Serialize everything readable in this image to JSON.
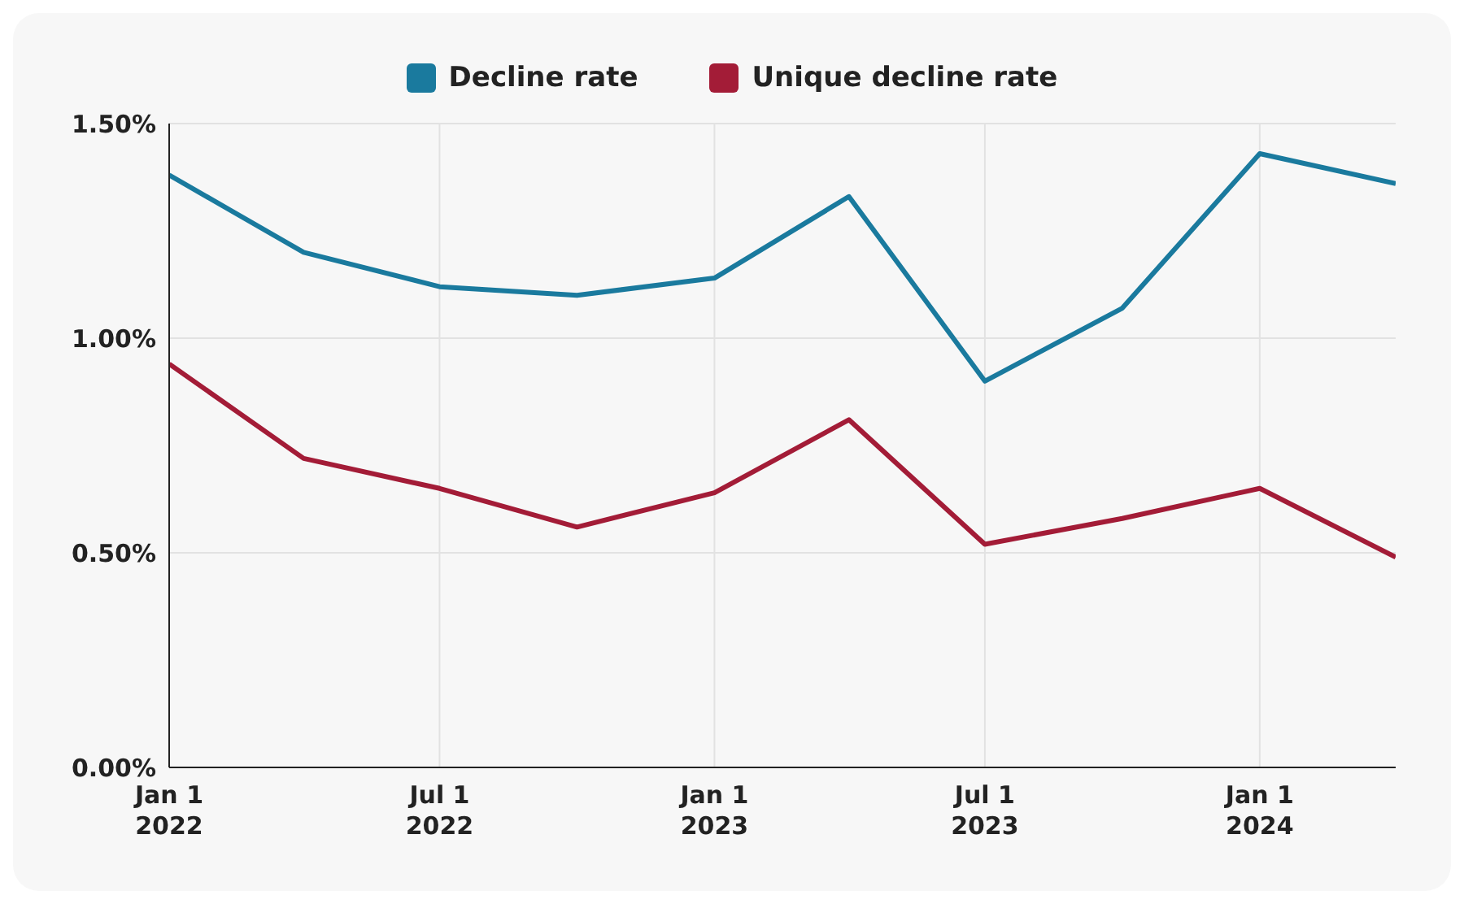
{
  "chart_data": {
    "type": "line",
    "x": [
      "2022-01-01",
      "2022-04-01",
      "2022-07-01",
      "2022-10-01",
      "2023-01-01",
      "2023-04-01",
      "2023-07-01",
      "2023-10-01",
      "2024-01-01",
      "2024-04-01"
    ],
    "series": [
      {
        "name": "Decline rate",
        "color": "#1a7a9e",
        "values": [
          1.38,
          1.2,
          1.12,
          1.1,
          1.14,
          1.33,
          0.9,
          1.07,
          1.43,
          1.36
        ]
      },
      {
        "name": "Unique decline rate",
        "color": "#a31c37",
        "values": [
          0.94,
          0.72,
          0.65,
          0.56,
          0.64,
          0.81,
          0.52,
          0.58,
          0.65,
          0.49
        ]
      }
    ],
    "xlim": [
      "2022-01-01",
      "2024-04-01"
    ],
    "xticks": [
      {
        "value": "2022-01-01",
        "label": "Jan 1\n2022"
      },
      {
        "value": "2022-07-01",
        "label": "Jul 1\n2022"
      },
      {
        "value": "2023-01-01",
        "label": "Jan 1\n2023"
      },
      {
        "value": "2023-07-01",
        "label": "Jul 1\n2023"
      },
      {
        "value": "2024-01-01",
        "label": "Jan 1\n2024"
      }
    ],
    "ylim": [
      0,
      1.5
    ],
    "yticks": [
      {
        "value": 0,
        "label": "0.00%"
      },
      {
        "value": 0.5,
        "label": "0.50%"
      },
      {
        "value": 1,
        "label": "1.00%"
      },
      {
        "value": 1.5,
        "label": "1.50%"
      }
    ],
    "grid": true,
    "legend": "top",
    "marker": "none",
    "line_style": "solid"
  }
}
